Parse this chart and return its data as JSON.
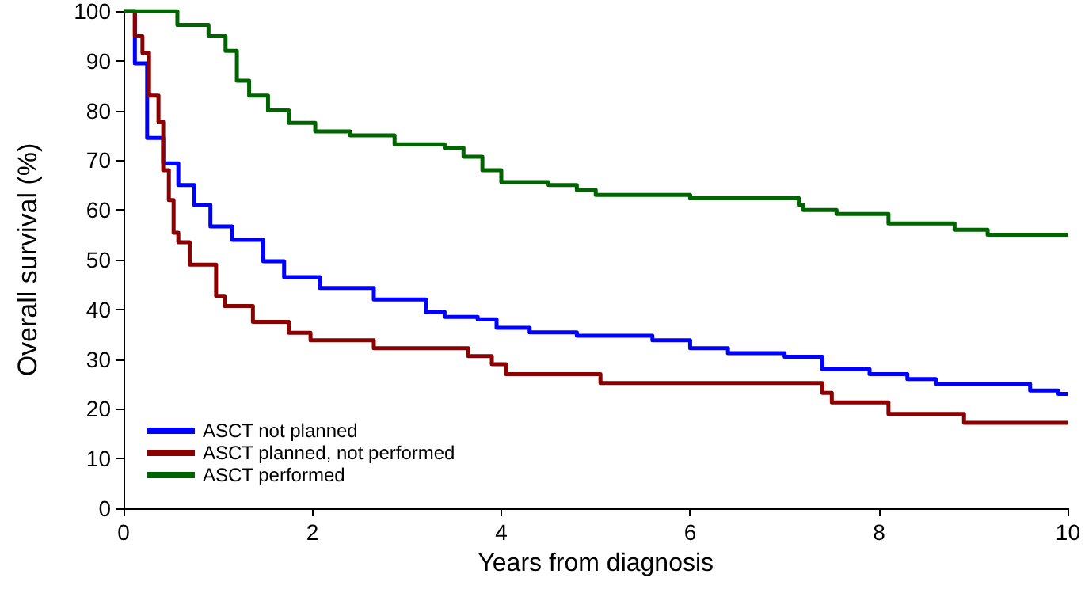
{
  "chart_data": {
    "type": "step",
    "xlabel": "Years from diagnosis",
    "ylabel": "Overall survival (%)",
    "xlim": [
      0,
      10
    ],
    "xticks": [
      0,
      2,
      4,
      6,
      8,
      10
    ],
    "ylim": [
      0,
      100
    ],
    "yticks": [
      0,
      10,
      20,
      30,
      40,
      50,
      60,
      70,
      80,
      90,
      100
    ],
    "grid": false,
    "legend": "bottom left",
    "marker": "none",
    "line_style": "solid",
    "series": [
      {
        "name": "ASCT not planned",
        "color": "#0000ff",
        "x": [
          0,
          0.12,
          0.25,
          0.42,
          0.58,
          0.75,
          0.92,
          1.15,
          1.48,
          1.7,
          2.08,
          2.65,
          3.2,
          3.4,
          3.75,
          3.95,
          4.3,
          4.8,
          5.6,
          6.0,
          6.4,
          7.0,
          7.4,
          7.9,
          8.3,
          8.6,
          9.6,
          9.9,
          10
        ],
        "values": [
          100,
          89.5,
          74.5,
          69.4,
          65,
          61,
          56.7,
          54,
          49.7,
          46.5,
          44.3,
          42,
          39.5,
          38.5,
          38,
          36.3,
          35.4,
          34.7,
          33.8,
          32.2,
          31.2,
          30.5,
          28,
          27,
          26,
          25,
          23.7,
          23,
          23
        ]
      },
      {
        "name": "ASCT planned, not performed",
        "color": "#8b0000",
        "x": [
          0,
          0.05,
          0.12,
          0.2,
          0.27,
          0.37,
          0.42,
          0.48,
          0.53,
          0.58,
          0.7,
          0.98,
          1.07,
          1.37,
          1.75,
          1.98,
          2.65,
          3.65,
          3.9,
          4.05,
          5.05,
          7.4,
          7.5,
          8.1,
          8.9,
          10
        ],
        "values": [
          100,
          100,
          95,
          91.6,
          83,
          77.7,
          68,
          62,
          55.4,
          53.5,
          49,
          42.7,
          40.7,
          37.5,
          35.3,
          33.8,
          32.2,
          30.6,
          29,
          27,
          25.2,
          23.2,
          21.3,
          19,
          17.2,
          17.2
        ]
      },
      {
        "name": "ASCT performed",
        "color": "#006400",
        "x": [
          0,
          0.57,
          0.9,
          1.08,
          1.2,
          1.33,
          1.53,
          1.75,
          2.03,
          2.4,
          2.87,
          3.4,
          3.6,
          3.8,
          4.0,
          4.5,
          4.8,
          5.0,
          6.0,
          7.15,
          7.2,
          7.55,
          8.1,
          8.8,
          9.15,
          10
        ],
        "values": [
          100,
          97.2,
          95,
          92,
          86,
          83,
          80,
          77.5,
          75.8,
          75,
          73.2,
          72.5,
          70.7,
          68,
          65.6,
          65,
          64,
          63,
          62.4,
          61,
          60,
          59.2,
          57.3,
          56,
          55,
          55
        ]
      }
    ]
  }
}
